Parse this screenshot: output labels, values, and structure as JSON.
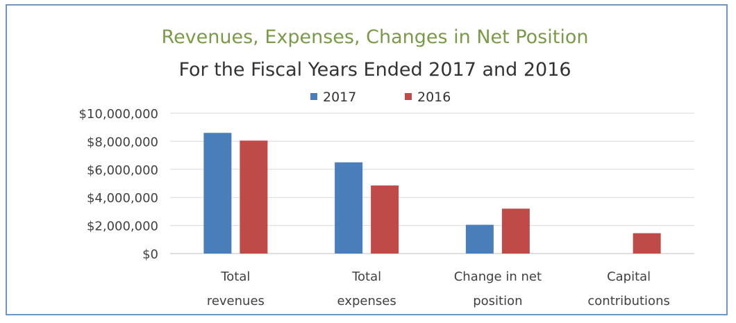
{
  "chart_data": {
    "type": "bar",
    "title": "Revenues, Expenses, Changes in Net Position",
    "subtitle": "For the Fiscal Years Ended 2017 and 2016",
    "categories": [
      [
        "Total",
        "revenues"
      ],
      [
        "Total",
        "expenses"
      ],
      [
        "Change in net",
        "position"
      ],
      [
        "Capital",
        "contributions"
      ]
    ],
    "series": [
      {
        "name": "2017",
        "color": "#4a7ebb",
        "values": [
          8600000,
          6500000,
          2050000,
          0
        ]
      },
      {
        "name": "2016",
        "color": "#be4b48",
        "values": [
          8050000,
          4850000,
          3200000,
          1450000
        ]
      }
    ],
    "ylim": [
      0,
      10000000
    ],
    "yticks": [
      0,
      2000000,
      4000000,
      6000000,
      8000000,
      10000000
    ],
    "ytick_labels": [
      "$0",
      "$2,000,000",
      "$4,000,000",
      "$6,000,000",
      "$8,000,000",
      "$10,000,000"
    ],
    "grid": true,
    "legend_position": "top"
  }
}
